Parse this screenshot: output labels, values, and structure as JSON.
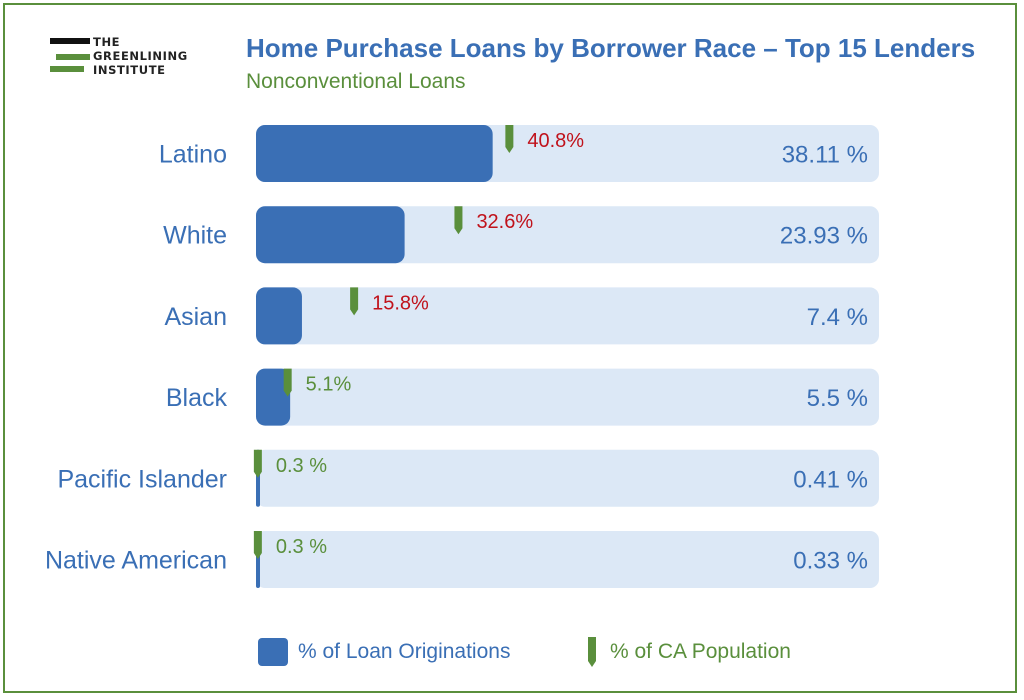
{
  "logo": {
    "line1": "THE",
    "line2": "GREENLINING",
    "line3": "INSTITUTE"
  },
  "header": {
    "title": "Home Purchase Loans by Borrower Race – Top 15 Lenders",
    "subtitle": "Nonconventional Loans"
  },
  "colors": {
    "bar": "#3a6fb5",
    "track": "#dce8f6",
    "marker": "#5a8f3c",
    "label_red": "#c0121b",
    "label_green": "#5a8f3c",
    "category_text": "#3a6fb5",
    "frame": "#5a8f3c"
  },
  "chart_data": {
    "type": "bar",
    "orientation": "horizontal",
    "xlim": [
      0,
      100
    ],
    "categories": [
      "Latino",
      "White",
      "Asian",
      "Black",
      "Pacific Islander",
      "Native American"
    ],
    "series": [
      {
        "name": "% of Loan Originations",
        "values": [
          38.11,
          23.93,
          7.4,
          5.5,
          0.41,
          0.33
        ],
        "labels": [
          "38.11 %",
          "23.93 %",
          "7.4 %",
          "5.5 %",
          "0.41 %",
          "0.33 %"
        ]
      },
      {
        "name": "% of CA Population",
        "values": [
          40.8,
          32.6,
          15.8,
          5.1,
          0.3,
          0.3
        ],
        "labels": [
          "40.8%",
          "32.6%",
          "15.8%",
          "5.1%",
          "0.3 %",
          "0.3 %"
        ],
        "label_colors": [
          "red",
          "red",
          "red",
          "green",
          "green",
          "green"
        ]
      }
    ]
  },
  "legend": {
    "loans_label": "% of Loan Originations",
    "population_label": "% of CA Population"
  }
}
